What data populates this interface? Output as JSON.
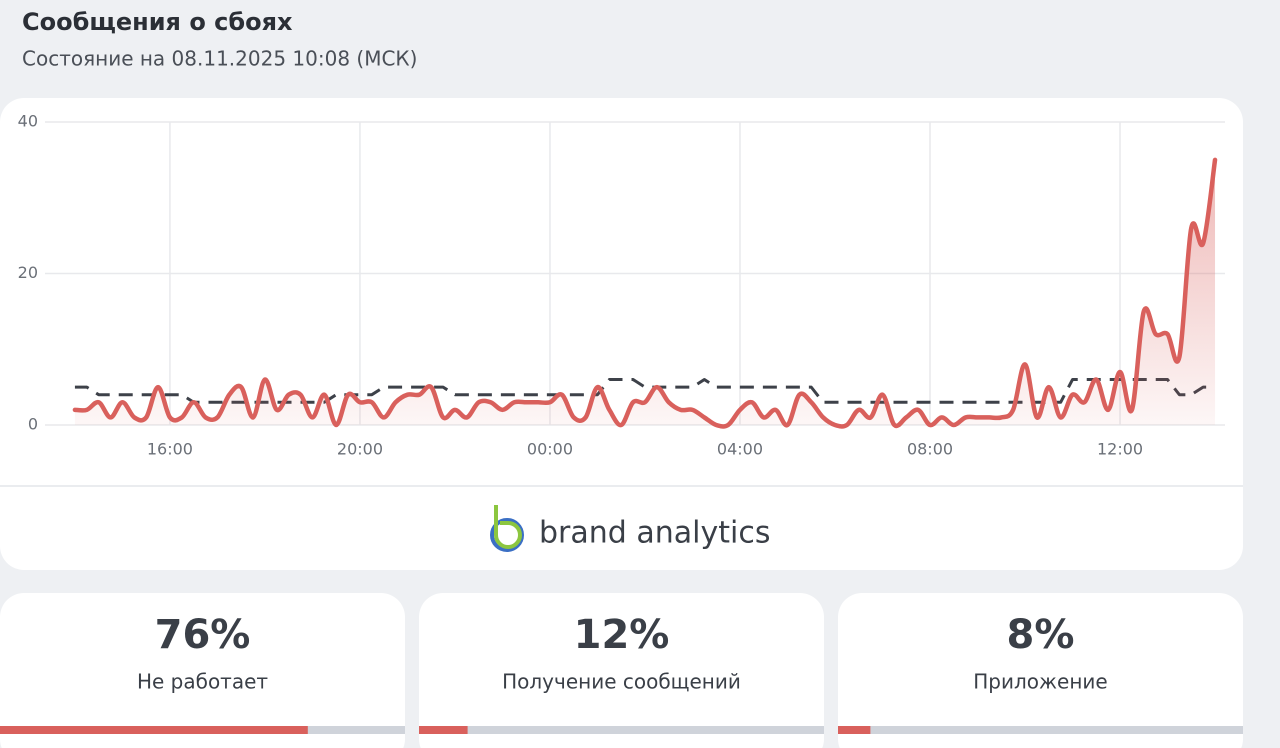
{
  "header": {
    "title": "Сообщения о сбоях",
    "subtitle": "Состояние на 08.11.2025 10:08 (МСК)"
  },
  "chart_data": {
    "type": "line",
    "x": [
      14,
      14.25,
      14.5,
      14.75,
      15,
      15.25,
      15.5,
      15.75,
      16,
      16.25,
      16.5,
      16.75,
      17,
      17.25,
      17.5,
      17.75,
      18,
      18.25,
      18.5,
      18.75,
      19,
      19.25,
      19.5,
      19.75,
      20,
      20.25,
      20.5,
      20.75,
      21,
      21.25,
      21.5,
      21.75,
      22,
      22.25,
      22.5,
      22.75,
      23,
      23.25,
      23.5,
      23.75,
      24,
      24.25,
      24.5,
      24.75,
      25,
      25.25,
      25.5,
      25.75,
      26,
      26.25,
      26.5,
      26.75,
      27,
      27.25,
      27.5,
      27.75,
      28,
      28.25,
      28.5,
      28.75,
      29,
      29.25,
      29.5,
      29.75,
      30,
      30.25,
      30.5,
      30.75,
      31,
      31.25,
      31.5,
      31.75,
      32,
      32.25,
      32.5,
      32.75,
      33,
      33.25,
      33.5,
      33.75,
      34,
      34.25,
      34.5,
      34.75,
      35,
      35.25,
      35.5,
      35.75,
      36,
      36.25,
      36.5,
      36.75,
      37,
      37.25,
      37.5,
      37.75,
      38
    ],
    "series": [
      {
        "color": "#d9605c",
        "style": "solid",
        "fill": true,
        "values": [
          2,
          2,
          3,
          1,
          3,
          1,
          1,
          5,
          1,
          1,
          3,
          1,
          1,
          4,
          5,
          1,
          6,
          2,
          4,
          4,
          1,
          4,
          0,
          4,
          3,
          3,
          1,
          3,
          4,
          4,
          5,
          1,
          2,
          1,
          3,
          3,
          2,
          3,
          3,
          3,
          3,
          4,
          1,
          1,
          5,
          2,
          0,
          3,
          3,
          5,
          3,
          2,
          2,
          1,
          0,
          0,
          2,
          3,
          1,
          2,
          0,
          4,
          3,
          1,
          0,
          0,
          2,
          1,
          4,
          0,
          1,
          2,
          0,
          1,
          0,
          1,
          1,
          1,
          1,
          2,
          8,
          1,
          5,
          1,
          4,
          3,
          6,
          2,
          7,
          2,
          15,
          12,
          12,
          9,
          26,
          24,
          35
        ]
      },
      {
        "color": "#3d4149",
        "style": "dashed",
        "fill": false,
        "values": [
          5,
          5,
          4,
          4,
          4,
          4,
          4,
          4,
          4,
          4,
          3,
          3,
          3,
          3,
          3,
          3,
          3,
          3,
          3,
          3,
          3,
          3,
          4,
          4,
          4,
          4,
          5,
          5,
          5,
          5,
          5,
          5,
          4,
          4,
          4,
          4,
          4,
          4,
          4,
          4,
          4,
          4,
          4,
          4,
          4,
          6,
          6,
          6,
          5,
          5,
          5,
          5,
          5,
          6,
          5,
          5,
          5,
          5,
          5,
          5,
          5,
          5,
          5,
          3,
          3,
          3,
          3,
          3,
          3,
          3,
          3,
          3,
          3,
          3,
          3,
          3,
          3,
          3,
          3,
          3,
          3,
          3,
          3,
          3,
          6,
          6,
          6,
          6,
          6,
          6,
          6,
          6,
          6,
          4,
          4,
          5,
          5
        ]
      }
    ],
    "xlim": [
      13.37,
      38.21
    ],
    "xticks": [
      {
        "value": 16,
        "label": "16:00"
      },
      {
        "value": 20,
        "label": "20:00"
      },
      {
        "value": 24,
        "label": "00:00"
      },
      {
        "value": 28,
        "label": "04:00"
      },
      {
        "value": 32,
        "label": "08:00"
      },
      {
        "value": 36,
        "label": "12:00"
      }
    ],
    "ylim": [
      0,
      40
    ],
    "yticks": [
      0,
      20,
      40
    ],
    "grid": true
  },
  "logo": {
    "text": "brand analytics"
  },
  "cards": [
    {
      "value": 76,
      "value_label": "76%",
      "label": "Не работает"
    },
    {
      "value": 12,
      "value_label": "12%",
      "label": "Получение сообщений"
    },
    {
      "value": 8,
      "value_label": "8%",
      "label": "Приложение"
    }
  ]
}
